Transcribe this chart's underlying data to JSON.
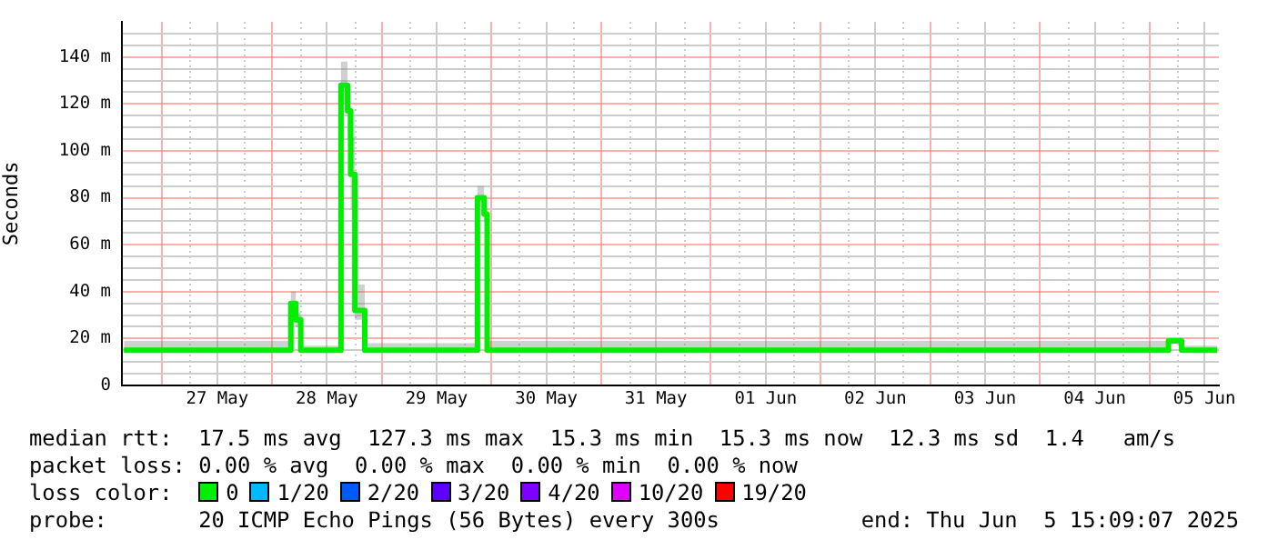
{
  "chart_data": {
    "type": "step",
    "ylabel": "Seconds",
    "legend_title": "loss color:",
    "legend": "bottom",
    "grid": true,
    "x": [
      "2025-05-26T15:36",
      "2025-05-28T04:07",
      "2025-05-28T05:12",
      "2025-05-28T06:17",
      "2025-05-28T15:05",
      "2025-05-28T16:31",
      "2025-05-28T17:12",
      "2025-05-28T18:07",
      "2025-05-28T20:17",
      "2025-05-29T20:56",
      "2025-05-29T22:24",
      "2025-05-29T23:04",
      "2025-06-05T04:07",
      "2025-06-05T07:00",
      "2025-06-05T14:48"
    ],
    "series": [
      {
        "name": "0",
        "color": "#00ee00",
        "values": [
          15,
          35,
          28,
          15,
          128,
          117,
          90,
          32,
          15,
          80,
          73,
          15,
          19,
          15,
          15
        ],
        "lower": [
          14,
          30,
          25,
          14,
          120,
          105,
          75,
          28,
          14,
          76,
          70,
          14,
          18,
          14,
          14
        ],
        "upper": [
          19,
          40,
          31,
          17,
          138,
          125,
          106,
          43,
          18,
          85,
          76,
          19,
          20,
          17,
          17
        ]
      },
      {
        "name": "1/20",
        "color": "#00b8ff",
        "values": [
          null,
          null,
          null,
          null,
          null,
          null,
          null,
          null,
          null,
          null,
          null,
          null,
          null,
          null,
          null
        ]
      },
      {
        "name": "2/20",
        "color": "#0059ff",
        "values": [
          null,
          null,
          null,
          null,
          null,
          null,
          null,
          null,
          null,
          null,
          null,
          null,
          null,
          null,
          null
        ]
      },
      {
        "name": "3/20",
        "color": "#5e00ff",
        "values": [
          null,
          null,
          null,
          null,
          null,
          null,
          null,
          null,
          null,
          null,
          null,
          null,
          null,
          null,
          null
        ]
      },
      {
        "name": "4/20",
        "color": "#7e00ff",
        "values": [
          null,
          null,
          null,
          null,
          null,
          null,
          null,
          null,
          null,
          null,
          null,
          null,
          null,
          null,
          null
        ]
      },
      {
        "name": "10/20",
        "color": "#dd00ff",
        "values": [
          null,
          null,
          null,
          null,
          null,
          null,
          null,
          null,
          null,
          null,
          null,
          null,
          null,
          null,
          null
        ]
      },
      {
        "name": "19/20",
        "color": "#ff0000",
        "values": [
          null,
          null,
          null,
          null,
          null,
          null,
          null,
          null,
          null,
          null,
          null,
          null,
          null,
          null,
          null
        ]
      }
    ],
    "xlim": [
      "2025-05-26T15:09",
      "2025-06-05T15:09"
    ],
    "xticks": [
      {
        "value": "2025-05-27T00:00",
        "label": null
      },
      {
        "value": "2025-05-27T12:00",
        "label": "27 May"
      },
      {
        "value": "2025-05-28T00:00",
        "label": null
      },
      {
        "value": "2025-05-28T12:00",
        "label": "28 May"
      },
      {
        "value": "2025-05-29T00:00",
        "label": null
      },
      {
        "value": "2025-05-29T12:00",
        "label": "29 May"
      },
      {
        "value": "2025-05-30T00:00",
        "label": null
      },
      {
        "value": "2025-05-30T12:00",
        "label": "30 May"
      },
      {
        "value": "2025-05-31T00:00",
        "label": null
      },
      {
        "value": "2025-05-31T12:00",
        "label": "31 May"
      },
      {
        "value": "2025-06-01T00:00",
        "label": null
      },
      {
        "value": "2025-06-01T12:00",
        "label": "01 Jun"
      },
      {
        "value": "2025-06-02T00:00",
        "label": null
      },
      {
        "value": "2025-06-02T12:00",
        "label": "02 Jun"
      },
      {
        "value": "2025-06-03T00:00",
        "label": null
      },
      {
        "value": "2025-06-03T12:00",
        "label": "03 Jun"
      },
      {
        "value": "2025-06-04T00:00",
        "label": null
      },
      {
        "value": "2025-06-04T12:00",
        "label": "04 Jun"
      },
      {
        "value": "2025-06-05T00:00",
        "label": null
      },
      {
        "value": "2025-06-05T12:00",
        "label": "05 Jun"
      }
    ],
    "ylim": [
      0,
      155
    ],
    "yticks": [
      {
        "value": 0,
        "label": "0"
      },
      {
        "value": 5,
        "label": null
      },
      {
        "value": 10,
        "label": null
      },
      {
        "value": 15,
        "label": null
      },
      {
        "value": 20,
        "label": "20 m"
      },
      {
        "value": 25,
        "label": null
      },
      {
        "value": 30,
        "label": null
      },
      {
        "value": 35,
        "label": null
      },
      {
        "value": 40,
        "label": "40 m"
      },
      {
        "value": 45,
        "label": null
      },
      {
        "value": 50,
        "label": null
      },
      {
        "value": 55,
        "label": null
      },
      {
        "value": 60,
        "label": "60 m"
      },
      {
        "value": 65,
        "label": null
      },
      {
        "value": 70,
        "label": null
      },
      {
        "value": 75,
        "label": null
      },
      {
        "value": 80,
        "label": "80 m"
      },
      {
        "value": 85,
        "label": null
      },
      {
        "value": 90,
        "label": null
      },
      {
        "value": 95,
        "label": null
      },
      {
        "value": 100,
        "label": "100 m"
      },
      {
        "value": 105,
        "label": null
      },
      {
        "value": 110,
        "label": null
      },
      {
        "value": 115,
        "label": null
      },
      {
        "value": 120,
        "label": "120 m"
      },
      {
        "value": 125,
        "label": null
      },
      {
        "value": 130,
        "label": null
      },
      {
        "value": 135,
        "label": null
      },
      {
        "value": 140,
        "label": "140 m"
      },
      {
        "value": 145,
        "label": null
      },
      {
        "value": 150,
        "label": null
      }
    ],
    "annotations": [
      "median rtt:  17.5 ms avg  127.3 ms max  15.3 ms min  15.3 ms now  12.3 ms sd  1.4   am/s",
      "packet loss: 0.00 % avg  0.00 % max  0.00 % min  0.00 % now",
      "probe:       20 ICMP Echo Pings (56 Bytes) every 300s",
      "end: Thu Jun  5 15:09:07 2025"
    ]
  }
}
